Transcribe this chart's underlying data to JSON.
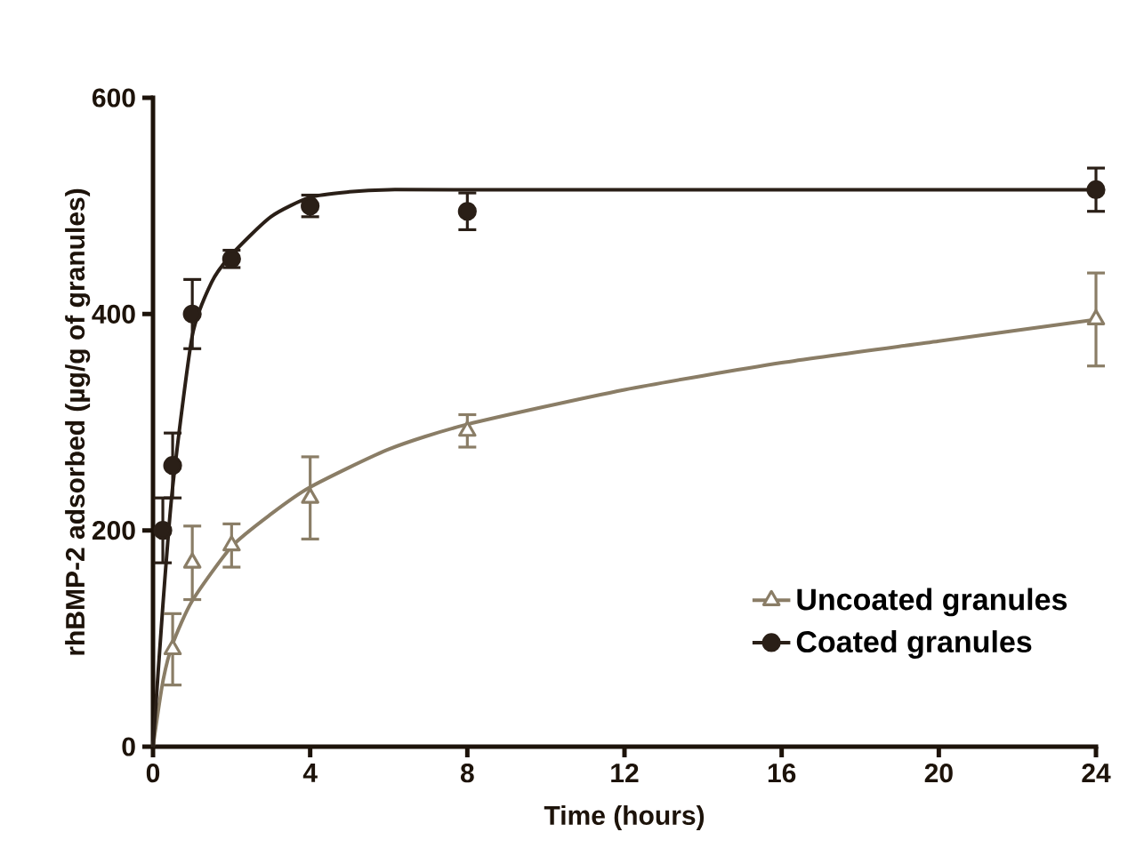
{
  "chart_data": {
    "type": "scatter",
    "xlabel": "Time (hours)",
    "ylabel": "rhBMP-2 adsorbed (µg/g of granules)",
    "xlim": [
      0,
      24
    ],
    "ylim": [
      0,
      600
    ],
    "xticks": [
      0,
      4,
      8,
      12,
      16,
      20,
      24
    ],
    "yticks": [
      0,
      200,
      400,
      600
    ],
    "legend": "bottom right",
    "series": [
      {
        "type": "line",
        "color": "#8a7d66",
        "marker": "none",
        "x": [
          0,
          0.25,
          0.5,
          1,
          2,
          3,
          4,
          6,
          8,
          12,
          16,
          20,
          24
        ],
        "values": [
          0,
          60,
          95,
          135,
          185,
          215,
          240,
          275,
          298,
          330,
          355,
          375,
          395
        ]
      },
      {
        "type": "line",
        "color": "#2a1f17",
        "marker": "none",
        "x": [
          0,
          0.25,
          0.5,
          1,
          1.5,
          2,
          3,
          4,
          5,
          6,
          8,
          24
        ],
        "values": [
          0,
          130,
          240,
          380,
          430,
          455,
          490,
          508,
          513,
          515,
          515,
          515
        ]
      },
      {
        "type": "scatter",
        "name": "Uncoated granules",
        "color": "#8a7d66",
        "marker": "triangle",
        "x": [
          0.5,
          1,
          2,
          4,
          8,
          24
        ],
        "values": [
          90,
          170,
          186,
          230,
          292,
          395
        ],
        "errors": [
          33,
          34,
          20,
          38,
          15,
          43
        ]
      },
      {
        "type": "scatter",
        "name": "Coated granules",
        "color": "#2a1f17",
        "marker": "circle",
        "x": [
          0.25,
          0.5,
          1,
          2,
          4,
          8,
          24
        ],
        "values": [
          200,
          260,
          400,
          451,
          500,
          495,
          515
        ],
        "errors": [
          30,
          30,
          32,
          8,
          10,
          17,
          20
        ]
      }
    ]
  }
}
